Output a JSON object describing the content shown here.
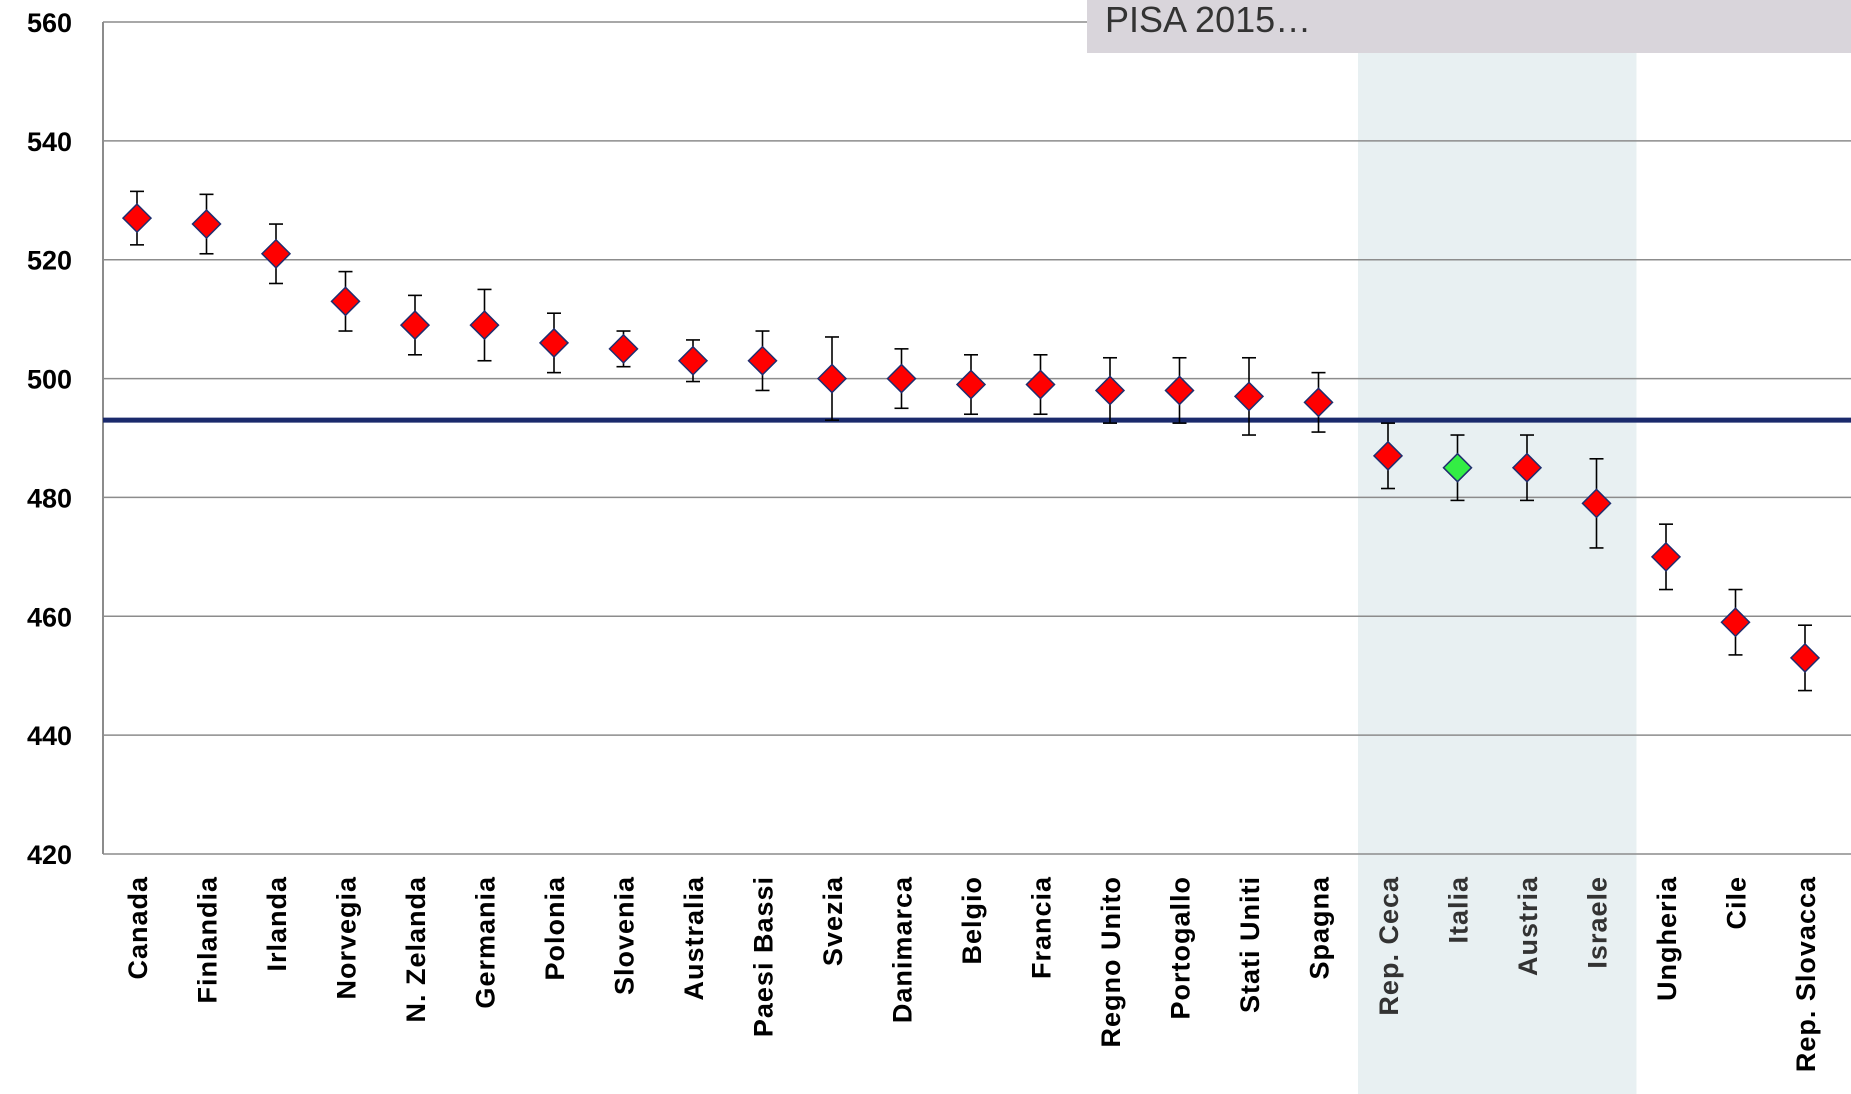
{
  "chart_data": {
    "type": "scatter",
    "title": "PISA 2015…",
    "xlabel": "",
    "ylabel": "",
    "ylim": [
      420,
      560
    ],
    "yticks": [
      420,
      440,
      460,
      480,
      500,
      520,
      540,
      560
    ],
    "grid": true,
    "reference_line": 493,
    "highlight_range": [
      "Rep. Ceca",
      "Israele"
    ],
    "colors": {
      "marker": "#ff0000",
      "marker_edge": "#1f2d6e",
      "highlight_marker": "#33ee44",
      "reference_line": "#1a2a6c",
      "highlight_band": "#e8f0f2",
      "title_box": "#d9d5db",
      "grid": "#8c8c8c"
    },
    "categories": [
      "Canada",
      "Finlandia",
      "Irlanda",
      "Norvegia",
      "N. Zelanda",
      "Germania",
      "Polonia",
      "Slovenia",
      "Australia",
      "Paesi Bassi",
      "Svezia",
      "Danimarca",
      "Belgio",
      "Francia",
      "Regno Unito",
      "Portogallo",
      "Stati Uniti",
      "Spagna",
      "Rep. Ceca",
      "Italia",
      "Austria",
      "Israele",
      "Ungheria",
      "Cile",
      "Rep. Slovacca"
    ],
    "series": [
      {
        "values": [
          527,
          526,
          521,
          513,
          509,
          509,
          506,
          505,
          503,
          503,
          500,
          500,
          499,
          499,
          498,
          498,
          497,
          496,
          487,
          485,
          485,
          479,
          470,
          459,
          453
        ],
        "upper": [
          531.5,
          531,
          526,
          518,
          514,
          515,
          511,
          508,
          506.5,
          508,
          507,
          505,
          504,
          504,
          503.5,
          503.5,
          503.5,
          501,
          492.5,
          490.5,
          490.5,
          486.5,
          475.5,
          464.5,
          458.5
        ],
        "lower": [
          522.5,
          521,
          516,
          508,
          504,
          503,
          501,
          502,
          499.5,
          498,
          493,
          495,
          494,
          494,
          492.5,
          492.5,
          490.5,
          491,
          481.5,
          479.5,
          479.5,
          471.5,
          464.5,
          453.5,
          447.5
        ]
      }
    ],
    "highlight_index": 19
  }
}
